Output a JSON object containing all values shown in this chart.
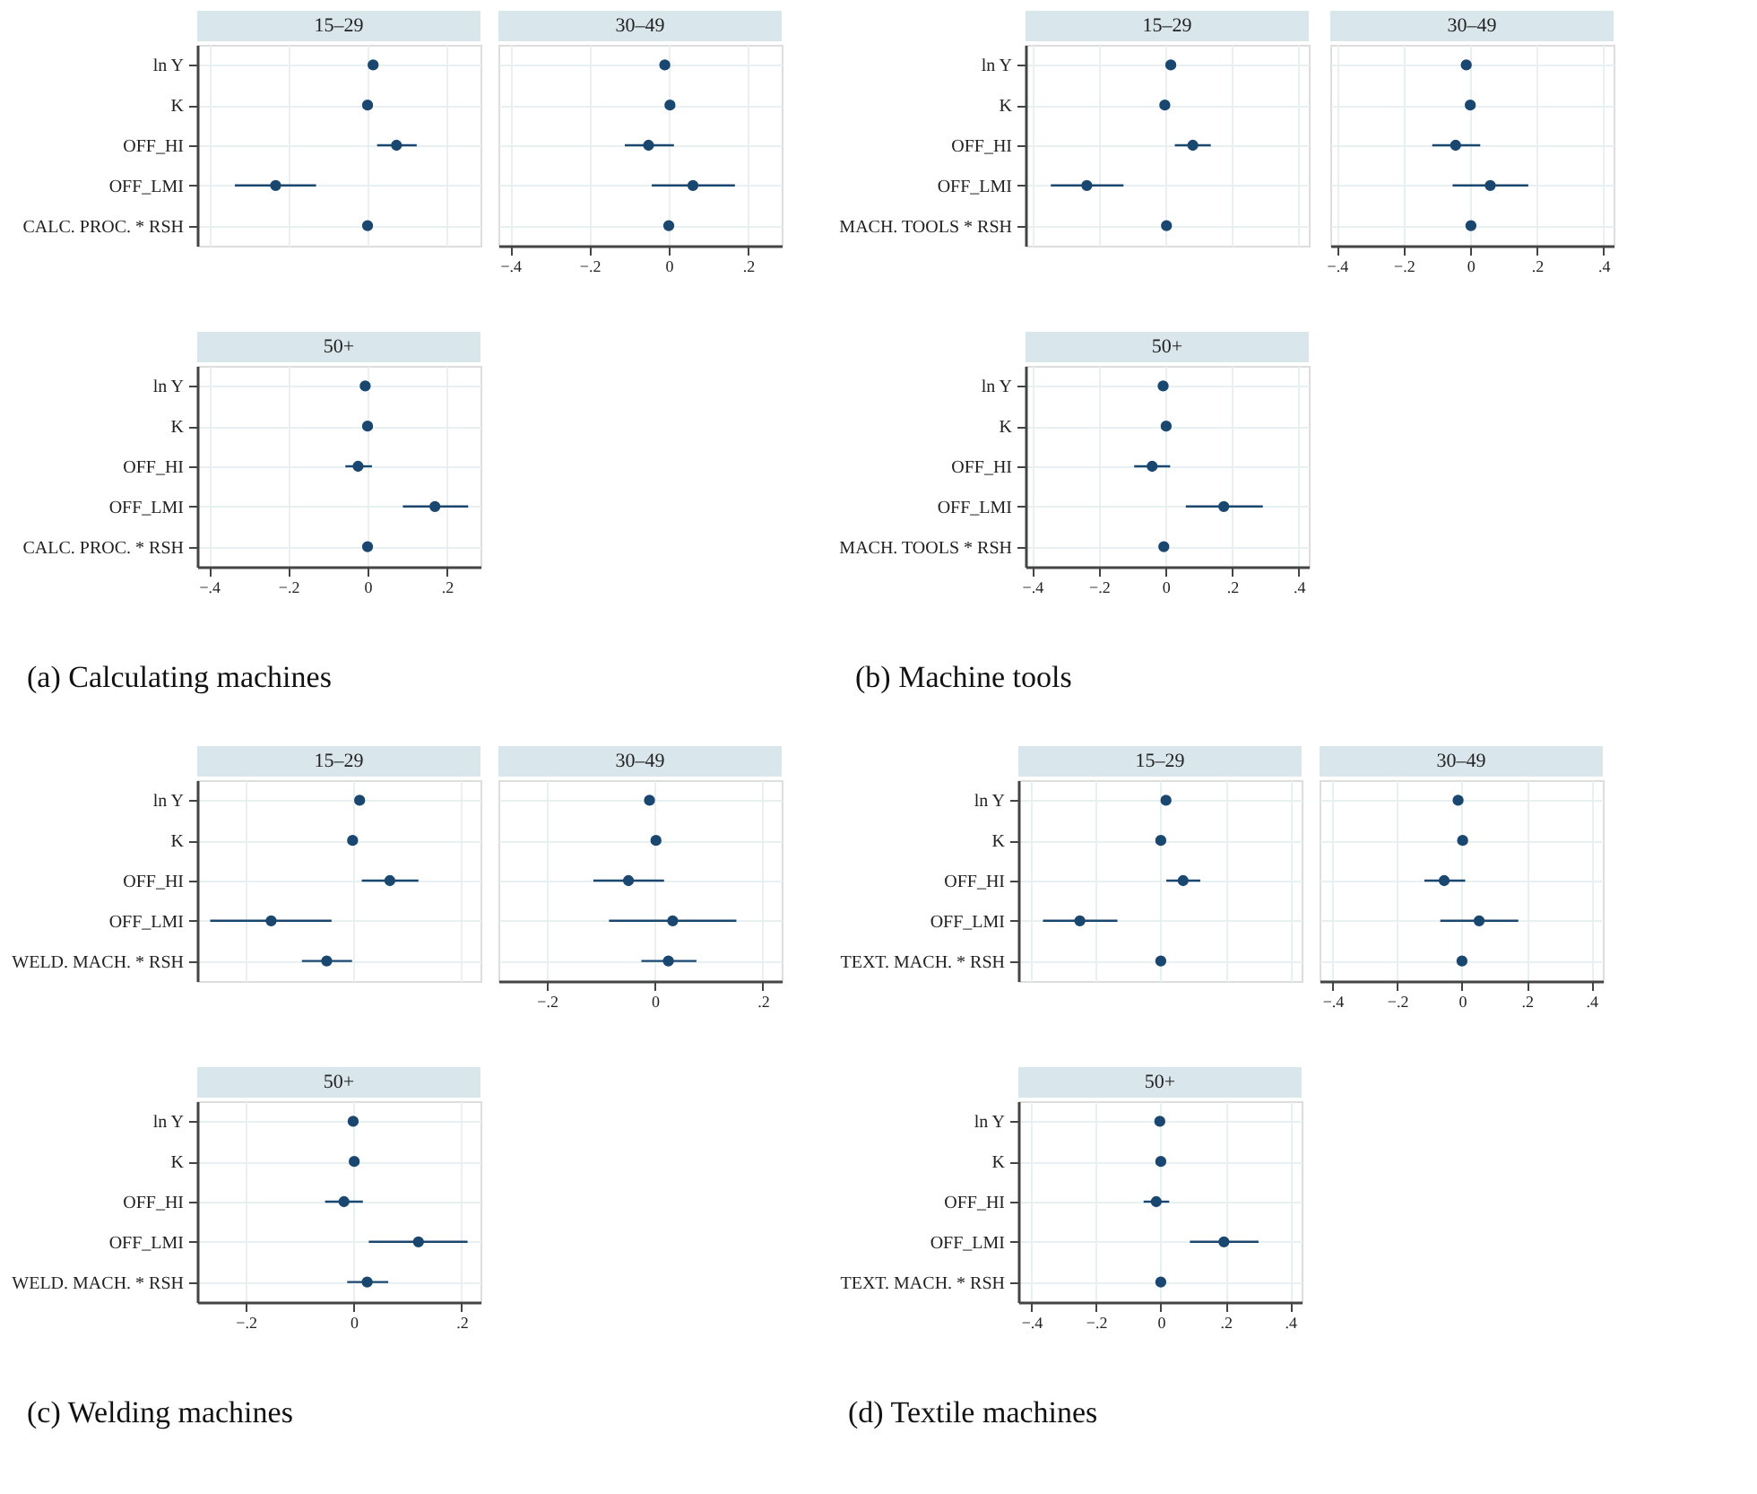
{
  "chart_data": [
    {
      "type": "scatter",
      "orientation": "horizontal",
      "title": "15–29",
      "categories": [
        "ln Y",
        "K",
        "OFF_HI",
        "OFF_LMI",
        "CALC. PROC. * RSH"
      ],
      "values": [
        0.014,
        0,
        0.073,
        -0.232,
        0
      ],
      "errors": [
        null,
        null,
        [
          0.024,
          0.124
        ],
        [
          -0.335,
          -0.13
        ],
        null
      ],
      "color": "#1a476f",
      "xlim": [
        -0.43,
        0.285
      ],
      "xticks": [
        {
          "value": -0.4,
          "label": null
        },
        {
          "value": -0.2,
          "label": null
        },
        {
          "value": 0,
          "label": null
        },
        {
          "value": 0.2,
          "label": null
        }
      ],
      "grid": true,
      "tick_labels": "y",
      "marker": "circle"
    },
    {
      "type": "scatter",
      "orientation": "horizontal",
      "title": "30–49",
      "categories": [
        null,
        null,
        null,
        null,
        null
      ],
      "values": [
        -0.01,
        0.003,
        -0.051,
        0.061,
        0
      ],
      "errors": [
        null,
        null,
        [
          -0.111,
          0.013
        ],
        [
          -0.043,
          0.167
        ],
        null
      ],
      "color": "#1a476f",
      "xlim": [
        -0.43,
        0.285
      ],
      "xticks": [
        {
          "value": -0.4,
          "label": "−.4"
        },
        {
          "value": -0.2,
          "label": "−.2"
        },
        0,
        {
          "value": 0.2,
          "label": ".2"
        }
      ],
      "grid": true,
      "tick_labels": "x",
      "marker": "circle"
    },
    {
      "type": "scatter",
      "orientation": "horizontal",
      "title": "50+",
      "categories": [
        "ln Y",
        "K",
        "OFF_HI",
        "OFF_LMI",
        "CALC. PROC. * RSH"
      ],
      "values": [
        -0.006,
        0,
        -0.024,
        0.17,
        0
      ],
      "errors": [
        null,
        null,
        [
          -0.056,
          0.011
        ],
        [
          0.089,
          0.254
        ],
        null
      ],
      "color": "#1a476f",
      "xlim": [
        -0.43,
        0.285
      ],
      "xticks": [
        {
          "value": -0.4,
          "label": "−.4"
        },
        {
          "value": -0.2,
          "label": "−.2"
        },
        0,
        {
          "value": 0.2,
          "label": ".2"
        }
      ],
      "grid": true,
      "marker": "circle",
      "annotations": [
        "(a) Calculating machines"
      ]
    },
    {
      "type": "scatter",
      "orientation": "horizontal",
      "title": "15–29",
      "categories": [
        "ln Y",
        "K",
        "OFF_HI",
        "OFF_LMI",
        "MACH. TOOLS * RSH"
      ],
      "values": [
        0.016,
        -0.002,
        0.082,
        -0.236,
        0.003
      ],
      "errors": [
        null,
        null,
        [
          0.028,
          0.136
        ],
        [
          -0.344,
          -0.126
        ],
        null
      ],
      "color": "#1a476f",
      "xlim": [
        -0.42,
        0.43
      ],
      "xticks": [
        {
          "value": -0.4,
          "label": null
        },
        {
          "value": -0.2,
          "label": null
        },
        {
          "value": 0,
          "label": null
        },
        {
          "value": 0.2,
          "label": null
        },
        {
          "value": 0.4,
          "label": null
        }
      ],
      "grid": true,
      "tick_labels": "y",
      "marker": "circle"
    },
    {
      "type": "scatter",
      "orientation": "horizontal",
      "title": "30–49",
      "categories": [
        null,
        null,
        null,
        null,
        null
      ],
      "values": [
        -0.012,
        0,
        -0.044,
        0.06,
        0.002
      ],
      "errors": [
        null,
        null,
        [
          -0.114,
          0.03
        ],
        [
          -0.053,
          0.174
        ],
        null
      ],
      "color": "#1a476f",
      "xlim": [
        -0.42,
        0.43
      ],
      "xticks": [
        {
          "value": -0.4,
          "label": "−.4"
        },
        {
          "value": -0.2,
          "label": "−.2"
        },
        0,
        {
          "value": 0.2,
          "label": ".2"
        },
        {
          "value": 0.4,
          "label": ".4"
        }
      ],
      "grid": true,
      "tick_labels": "x",
      "marker": "circle"
    },
    {
      "type": "scatter",
      "orientation": "horizontal",
      "title": "50+",
      "categories": [
        "ln Y",
        "K",
        "OFF_HI",
        "OFF_LMI",
        "MACH. TOOLS * RSH"
      ],
      "values": [
        -0.007,
        0.002,
        -0.04,
        0.175,
        -0.005
      ],
      "errors": [
        null,
        null,
        [
          -0.094,
          0.014
        ],
        [
          0.061,
          0.292
        ],
        null
      ],
      "color": "#1a476f",
      "xlim": [
        -0.42,
        0.43
      ],
      "xticks": [
        {
          "value": -0.4,
          "label": "−.4"
        },
        {
          "value": -0.2,
          "label": "−.2"
        },
        0,
        {
          "value": 0.2,
          "label": ".2"
        },
        {
          "value": 0.4,
          "label": ".4"
        }
      ],
      "grid": true,
      "marker": "circle",
      "annotations": [
        "(b) Machine tools"
      ]
    },
    {
      "type": "scatter",
      "orientation": "horizontal",
      "title": "15–29",
      "categories": [
        "ln Y",
        "K",
        "OFF_HI",
        "OFF_LMI",
        "WELD. MACH. * RSH"
      ],
      "values": [
        0.011,
        -0.002,
        0.067,
        -0.153,
        -0.05
      ],
      "errors": [
        null,
        null,
        [
          0.015,
          0.12
        ],
        [
          -0.266,
          -0.041
        ],
        [
          -0.096,
          -0.003
        ]
      ],
      "color": "#1a476f",
      "xlim": [
        -0.29,
        0.235
      ],
      "xticks": [
        {
          "value": -0.2,
          "label": null
        },
        {
          "value": 0,
          "label": null
        },
        {
          "value": 0.2,
          "label": null
        }
      ],
      "grid": true,
      "tick_labels": "y",
      "marker": "circle"
    },
    {
      "type": "scatter",
      "orientation": "horizontal",
      "title": "30–49",
      "categories": [
        null,
        null,
        null,
        null,
        null
      ],
      "values": [
        -0.01,
        0.002,
        -0.049,
        0.033,
        0.025
      ],
      "errors": [
        null,
        null,
        [
          -0.114,
          0.017
        ],
        [
          -0.085,
          0.151
        ],
        [
          -0.025,
          0.077
        ]
      ],
      "color": "#1a476f",
      "xlim": [
        -0.29,
        0.235
      ],
      "xticks": [
        {
          "value": -0.2,
          "label": "−.2"
        },
        0,
        {
          "value": 0.2,
          "label": ".2"
        }
      ],
      "grid": true,
      "tick_labels": "x",
      "marker": "circle"
    },
    {
      "type": "scatter",
      "orientation": "horizontal",
      "title": "50+",
      "categories": [
        "ln Y",
        "K",
        "OFF_HI",
        "OFF_LMI",
        "WELD. MACH. * RSH"
      ],
      "values": [
        -0.001,
        0.001,
        -0.018,
        0.12,
        0.025
      ],
      "errors": [
        null,
        null,
        [
          -0.053,
          0.017
        ],
        [
          0.028,
          0.211
        ],
        [
          -0.012,
          0.064
        ]
      ],
      "color": "#1a476f",
      "xlim": [
        -0.29,
        0.235
      ],
      "xticks": [
        {
          "value": -0.2,
          "label": "−.2"
        },
        0,
        {
          "value": 0.2,
          "label": ".2"
        }
      ],
      "grid": true,
      "marker": "circle",
      "annotations": [
        "(c) Welding machines"
      ]
    },
    {
      "type": "scatter",
      "orientation": "horizontal",
      "title": "15–29",
      "categories": [
        "ln Y",
        "K",
        "OFF_HI",
        "OFF_LMI",
        "TEXT. MACH. * RSH"
      ],
      "values": [
        0.016,
        0,
        0.069,
        -0.25,
        0
      ],
      "errors": [
        null,
        null,
        [
          0.017,
          0.122
        ],
        [
          -0.364,
          -0.134
        ],
        null
      ],
      "color": "#1a476f",
      "xlim": [
        -0.44,
        0.435
      ],
      "xticks": [
        {
          "value": -0.4,
          "label": null
        },
        {
          "value": -0.2,
          "label": null
        },
        {
          "value": 0,
          "label": null
        },
        {
          "value": 0.2,
          "label": null
        },
        {
          "value": 0.4,
          "label": null
        }
      ],
      "grid": true,
      "tick_labels": "y",
      "marker": "circle"
    },
    {
      "type": "scatter",
      "orientation": "horizontal",
      "title": "30–49",
      "categories": [
        null,
        null,
        null,
        null,
        null
      ],
      "values": [
        -0.012,
        0.002,
        -0.055,
        0.053,
        0
      ],
      "errors": [
        null,
        null,
        [
          -0.116,
          0.01
        ],
        [
          -0.067,
          0.174
        ],
        null
      ],
      "color": "#1a476f",
      "xlim": [
        -0.44,
        0.435
      ],
      "xticks": [
        {
          "value": -0.4,
          "label": "−.4"
        },
        {
          "value": -0.2,
          "label": "−.2"
        },
        0,
        {
          "value": 0.2,
          "label": ".2"
        },
        {
          "value": 0.4,
          "label": ".4"
        }
      ],
      "grid": true,
      "tick_labels": "x",
      "marker": "circle"
    },
    {
      "type": "scatter",
      "orientation": "horizontal",
      "title": "50+",
      "categories": [
        "ln Y",
        "K",
        "OFF_HI",
        "OFF_LMI",
        "TEXT. MACH. * RSH"
      ],
      "values": [
        -0.003,
        0,
        -0.014,
        0.195,
        0
      ],
      "errors": [
        null,
        null,
        [
          -0.053,
          0.026
        ],
        [
          0.09,
          0.302
        ],
        null
      ],
      "color": "#1a476f",
      "xlim": [
        -0.44,
        0.435
      ],
      "xticks": [
        {
          "value": -0.4,
          "label": "−.4"
        },
        {
          "value": -0.2,
          "label": "−.2"
        },
        0,
        {
          "value": 0.2,
          "label": ".2"
        },
        {
          "value": 0.4,
          "label": ".4"
        }
      ],
      "grid": true,
      "marker": "circle",
      "annotations": [
        "(d) Textile machines"
      ]
    }
  ]
}
